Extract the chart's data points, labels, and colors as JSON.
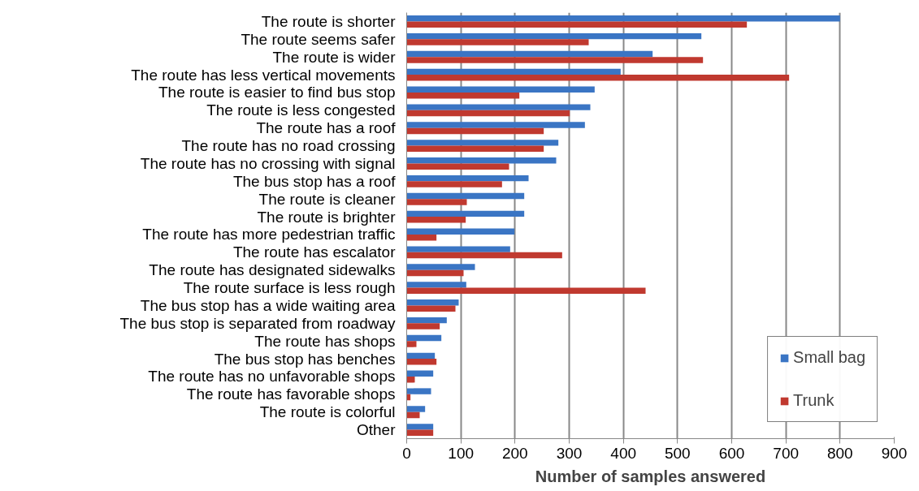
{
  "chart_data": {
    "type": "bar",
    "orientation": "horizontal",
    "xlabel": "Number of samples answered",
    "categories": [
      "The route is shorter",
      "The route seems safer",
      "The route is wider",
      "The route has less vertical movements",
      "The route is easier to find bus stop",
      "The route is less congested",
      "The route has a roof",
      "The route has no road crossing",
      "The route has no crossing with signal",
      "The bus stop has a roof",
      "The route is cleaner",
      "The route is brighter",
      "The route has more pedestrian traffic",
      "The route has escalator",
      "The route has designated sidewalks",
      "The route surface is less rough",
      "The bus stop has a wide waiting area",
      "The bus stop is separated from roadway",
      "The route has shops",
      "The bus stop has benches",
      "The route has no unfavorable shops",
      "The route has favorable shops",
      "The route is colorful",
      "Other"
    ],
    "series": [
      {
        "name": "Small bag",
        "color": "#3a75c4",
        "values": [
          800,
          544,
          454,
          395,
          347,
          339,
          329,
          280,
          276,
          225,
          217,
          217,
          199,
          191,
          126,
          110,
          96,
          74,
          64,
          52,
          49,
          45,
          34,
          49
        ]
      },
      {
        "name": "Trunk",
        "color": "#c0392f",
        "values": [
          628,
          336,
          547,
          706,
          208,
          301,
          253,
          253,
          189,
          176,
          111,
          109,
          55,
          287,
          105,
          441,
          90,
          61,
          18,
          55,
          15,
          7,
          24,
          49
        ]
      }
    ],
    "xlim": [
      0,
      900
    ],
    "xticks": [
      0,
      100,
      200,
      300,
      400,
      500,
      600,
      700,
      800,
      900
    ],
    "grid": "x",
    "legend": "bottom right"
  }
}
